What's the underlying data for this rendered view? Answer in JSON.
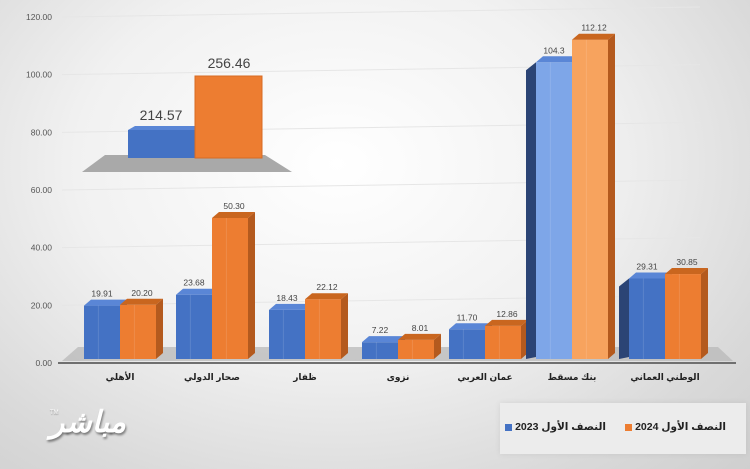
{
  "chart_data": {
    "type": "bar",
    "style": "3d-clustered-column",
    "title": "",
    "xlabel": "",
    "ylabel": "",
    "ylim": [
      0,
      120
    ],
    "yticks": [
      "0.00",
      "20.00",
      "40.00",
      "60.00",
      "80.00",
      "100.00",
      "120.00"
    ],
    "grid": true,
    "legend_position": "bottom-right",
    "categories": [
      "الأهلي",
      "صحار الدولي",
      "ظفار",
      "نزوى",
      "عمان العربي",
      "بنك مسقط",
      "الوطني العماني"
    ],
    "series": [
      {
        "name": "النصف الأول 2023",
        "color": "#4472C4",
        "values": [
          19.91,
          23.68,
          18.43,
          7.22,
          11.7,
          104.3,
          29.31
        ],
        "labels": [
          "19.91",
          "23.68",
          "18.43",
          "7.22",
          "11.70",
          "104.3",
          "29.31"
        ]
      },
      {
        "name": "النصف الأول 2024",
        "color": "#ED7D31",
        "values": [
          20.2,
          50.3,
          22.12,
          8.01,
          12.86,
          112.12,
          30.85
        ],
        "labels": [
          "20.20",
          "50.30",
          "22.12",
          "8.01",
          "12.86",
          "112.12",
          "30.85"
        ]
      }
    ],
    "inset": {
      "description": "Total (sector) comparison inset",
      "values": [
        214.57,
        256.46
      ],
      "labels": [
        "214.57",
        "256.46"
      ],
      "series": [
        "النصف الأول 2023",
        "النصف الأول 2024"
      ]
    }
  },
  "legend": {
    "items": [
      {
        "label": "النصف الأول 2024",
        "color": "#ED7D31"
      },
      {
        "label": "النصف الأول 2023",
        "color": "#4472C4"
      }
    ]
  },
  "watermark": {
    "text": "مباشر",
    "tm": "TM"
  },
  "colors": {
    "blue": "#4472C4",
    "blue_dark": "#2F5597",
    "blue_light": "#7EA6E8",
    "orange": "#ED7D31",
    "orange_dark": "#B45A1E",
    "orange_light": "#F7A35E",
    "floor": "#b8b8b8"
  }
}
